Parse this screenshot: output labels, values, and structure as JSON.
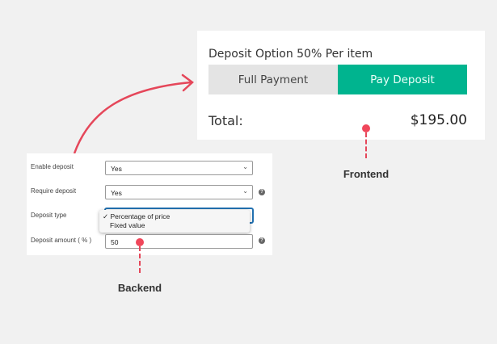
{
  "frontend": {
    "option_title": "Deposit Option 50% Per item",
    "full_payment_label": "Full Payment",
    "pay_deposit_label": "Pay Deposit",
    "selected": "Pay Deposit",
    "total_label": "Total:",
    "total_value": "$195.00",
    "accent_color": "#00b48f"
  },
  "backend": {
    "enable_deposit": {
      "label": "Enable deposit",
      "value": "Yes"
    },
    "require_deposit": {
      "label": "Require deposit",
      "value": "Yes",
      "help": "?"
    },
    "deposit_type": {
      "label": "Deposit type",
      "options": [
        "Percentage of price",
        "Fixed value"
      ],
      "selected": "Percentage of price",
      "check": "✓"
    },
    "deposit_amount": {
      "label": "Deposit amount ( % )",
      "value": "50",
      "help": "?"
    }
  },
  "annotations": {
    "frontend": "Frontend",
    "backend": "Backend",
    "marker_color": "#f0475b"
  }
}
